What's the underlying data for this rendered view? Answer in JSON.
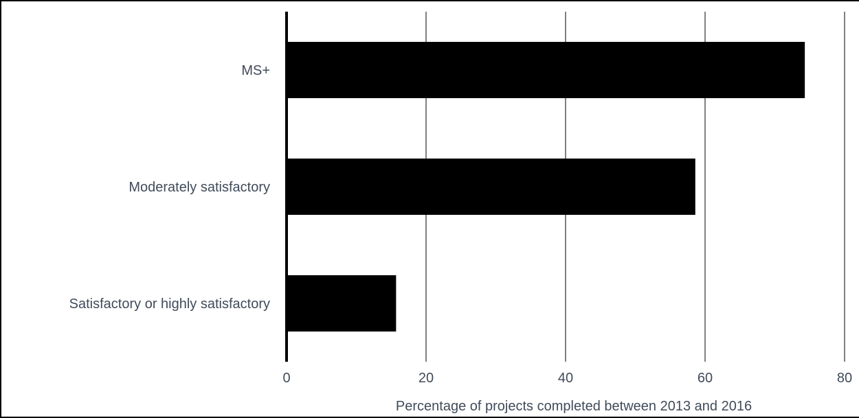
{
  "chart_data": {
    "type": "bar",
    "orientation": "horizontal",
    "categories": [
      "MS+",
      "Moderately satisfactory",
      "Satisfactory or highly satisfactory"
    ],
    "values": [
      74.3,
      58.6,
      15.7
    ],
    "xlabel": "Percentage of projects completed between 2013 and 2016",
    "ylabel": "",
    "xlim": [
      0,
      80
    ],
    "xticks": [
      0,
      20,
      40,
      60,
      80
    ],
    "grid": "vertical",
    "legend": "none",
    "colors": {
      "bar": "#000000",
      "grid": "#000000",
      "text": "#404b5a"
    }
  }
}
